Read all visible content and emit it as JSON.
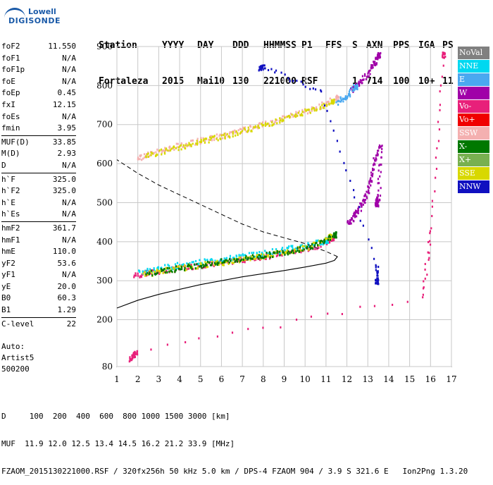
{
  "logo": {
    "line1": "Lowell",
    "line2": "DIGISONDE"
  },
  "header": {
    "row1": [
      "Station",
      "YYYY",
      "DAY",
      "DDD",
      "HHMMSS",
      "P1",
      "FFS",
      "S",
      "AXN",
      "PPS",
      "IGA",
      "PS"
    ],
    "row2": [
      "Fortaleza",
      "2015",
      "Mai10",
      "130",
      "221000",
      "RSF",
      "",
      "1",
      "714",
      "100",
      "10+",
      "11"
    ]
  },
  "params": [
    [
      {
        "k": "foF2",
        "v": "11.550"
      },
      {
        "k": "foF1",
        "v": "N/A"
      },
      {
        "k": "foF1p",
        "v": "N/A"
      },
      {
        "k": "foE",
        "v": "N/A"
      },
      {
        "k": "foEp",
        "v": "0.45"
      },
      {
        "k": "fxI",
        "v": "12.15"
      },
      {
        "k": "foEs",
        "v": "N/A"
      },
      {
        "k": "fmin",
        "v": "3.95"
      }
    ],
    [
      {
        "k": "MUF(D)",
        "v": "33.85"
      },
      {
        "k": "M(D)",
        "v": "2.93"
      },
      {
        "k": "D",
        "v": "N/A"
      }
    ],
    [
      {
        "k": "h`F",
        "v": "325.0"
      },
      {
        "k": "h`F2",
        "v": "325.0"
      },
      {
        "k": "h`E",
        "v": "N/A"
      },
      {
        "k": "h`Es",
        "v": "N/A"
      }
    ],
    [
      {
        "k": "hmF2",
        "v": "361.7"
      },
      {
        "k": "hmF1",
        "v": "N/A"
      },
      {
        "k": "hmE",
        "v": "110.0"
      },
      {
        "k": "yF2",
        "v": "53.6"
      },
      {
        "k": "yF1",
        "v": "N/A"
      },
      {
        "k": "yE",
        "v": "20.0"
      },
      {
        "k": "B0",
        "v": "60.3"
      },
      {
        "k": "B1",
        "v": "1.29"
      }
    ],
    [
      {
        "k": "C-level",
        "v": "22"
      }
    ]
  ],
  "auto": {
    "l1": "Auto:",
    "l2": "Artist5",
    "l3": "500200"
  },
  "footer": {
    "d_line": "D     100  200  400  600  800 1000 1500 3000 [km]",
    "muf_line": "MUF  11.9 12.0 12.5 13.4 14.5 16.2 21.2 33.9 [MHz]",
    "file_line": "FZAOM_2015130221000.RSF / 320fx256h 50 kHz 5.0 km / DPS-4 FZAOM 904 / 3.9 S 321.6 E   Ion2Png 1.3.20"
  },
  "legend": [
    {
      "label": "NoVal",
      "color": "#808080"
    },
    {
      "label": "NNE",
      "color": "#00d8f0"
    },
    {
      "label": "E",
      "color": "#4aa8f0"
    },
    {
      "label": "W",
      "color": "#a000a8"
    },
    {
      "label": "Vo-",
      "color": "#e8207a"
    },
    {
      "label": "Vo+",
      "color": "#f00000"
    },
    {
      "label": "SSW",
      "color": "#f4b0b0"
    },
    {
      "label": "X-",
      "color": "#007800"
    },
    {
      "label": "X+",
      "color": "#78b050"
    },
    {
      "label": "SSE",
      "color": "#d8d800"
    },
    {
      "label": "NNW",
      "color": "#1010c0"
    }
  ],
  "chart_data": {
    "type": "scatter",
    "xlim": [
      1,
      17
    ],
    "ylim": [
      80,
      900
    ],
    "x_ticks": [
      "1",
      "2",
      "3",
      "4",
      "5",
      "6",
      "7",
      "8",
      "9",
      "10",
      "11",
      "12",
      "13",
      "14",
      "15",
      "16",
      "17"
    ],
    "y_ticks": [
      "80",
      "200",
      "300",
      "400",
      "500",
      "600",
      "700",
      "800",
      "900"
    ],
    "grid": true,
    "legend_position": "right",
    "traces": [
      {
        "color": "#e8207a",
        "points": [
          [
            1.8,
            315
          ],
          [
            2.5,
            322
          ],
          [
            3.5,
            330
          ],
          [
            4.5,
            338
          ],
          [
            5.5,
            345
          ],
          [
            6.5,
            352
          ],
          [
            7.5,
            360
          ],
          [
            8.5,
            368
          ],
          [
            9.5,
            378
          ],
          [
            10.5,
            390
          ],
          [
            11.3,
            410
          ]
        ]
      },
      {
        "color": "#00d8f0",
        "points": [
          [
            2.0,
            325
          ],
          [
            3.0,
            333
          ],
          [
            4.0,
            342
          ],
          [
            5.0,
            350
          ],
          [
            6.0,
            357
          ],
          [
            7.0,
            365
          ],
          [
            8.0,
            373
          ],
          [
            9.0,
            382
          ],
          [
            10.0,
            393
          ],
          [
            11.0,
            405
          ]
        ]
      },
      {
        "color": "#d8d800",
        "points": [
          [
            2.2,
            318
          ],
          [
            3.2,
            328
          ],
          [
            4.2,
            336
          ],
          [
            5.2,
            344
          ],
          [
            6.2,
            350
          ],
          [
            7.2,
            360
          ],
          [
            8.2,
            368
          ],
          [
            9.2,
            378
          ],
          [
            10.2,
            390
          ],
          [
            11.2,
            415
          ]
        ]
      },
      {
        "color": "#007800",
        "points": [
          [
            2.4,
            320
          ],
          [
            3.4,
            330
          ],
          [
            4.4,
            338
          ],
          [
            5.4,
            346
          ],
          [
            6.4,
            354
          ],
          [
            7.4,
            362
          ],
          [
            8.4,
            370
          ],
          [
            9.4,
            380
          ],
          [
            10.4,
            392
          ],
          [
            11.4,
            420
          ]
        ]
      },
      {
        "color": "#a000a8",
        "points": [
          [
            12.0,
            450
          ],
          [
            12.3,
            465
          ],
          [
            12.6,
            490
          ],
          [
            12.9,
            520
          ],
          [
            13.1,
            560
          ],
          [
            13.3,
            610
          ],
          [
            13.6,
            650
          ],
          [
            13.5,
            520
          ],
          [
            13.4,
            500
          ]
        ]
      },
      {
        "color": "#f4b0b0",
        "points": [
          [
            1.9,
            615
          ],
          [
            2.6,
            628
          ],
          [
            3.5,
            642
          ],
          [
            4.5,
            655
          ],
          [
            5.5,
            668
          ],
          [
            6.5,
            680
          ],
          [
            7.5,
            695
          ],
          [
            8.5,
            710
          ],
          [
            9.5,
            728
          ],
          [
            10.5,
            745
          ],
          [
            11.5,
            770
          ]
        ]
      },
      {
        "color": "#d8d800",
        "points": [
          [
            2.3,
            620
          ],
          [
            3.3,
            635
          ],
          [
            4.3,
            648
          ],
          [
            5.3,
            662
          ],
          [
            6.3,
            675
          ],
          [
            7.3,
            690
          ],
          [
            8.3,
            705
          ],
          [
            9.3,
            722
          ],
          [
            10.3,
            740
          ],
          [
            11.3,
            762
          ]
        ]
      },
      {
        "color": "#a000a8",
        "points": [
          [
            12.2,
            790
          ],
          [
            12.6,
            810
          ],
          [
            13.0,
            835
          ],
          [
            13.3,
            860
          ],
          [
            13.5,
            880
          ]
        ]
      },
      {
        "color": "#4aa8f0",
        "points": [
          [
            11.5,
            760
          ],
          [
            12.0,
            775
          ],
          [
            12.4,
            800
          ]
        ]
      },
      {
        "color": "#1010c0",
        "points": [
          [
            7.8,
            848
          ],
          [
            8.0,
            850
          ],
          [
            10.8,
            782
          ],
          [
            13.4,
            340
          ],
          [
            13.4,
            300
          ]
        ]
      },
      {
        "color": "#e8207a",
        "points": [
          [
            1.6,
            100
          ],
          [
            1.8,
            110
          ],
          [
            1.9,
            120
          ],
          [
            15.6,
            260
          ],
          [
            16.0,
            440
          ],
          [
            16.6,
            880
          ]
        ]
      }
    ],
    "profile_line": [
      [
        11.55,
        361.7
      ],
      [
        11.4,
        352
      ],
      [
        11.0,
        345
      ],
      [
        10.0,
        335
      ],
      [
        9.0,
        326
      ],
      [
        8.0,
        318
      ],
      [
        7.0,
        310
      ],
      [
        6.0,
        300
      ],
      [
        5.0,
        290
      ],
      [
        4.0,
        278
      ],
      [
        3.0,
        265
      ],
      [
        2.0,
        250
      ],
      [
        1.0,
        230
      ]
    ],
    "profile_dashed": [
      [
        11.55,
        361.7
      ],
      [
        11.0,
        375
      ],
      [
        10.0,
        395
      ],
      [
        9.0,
        410
      ],
      [
        8.0,
        425
      ],
      [
        7.0,
        445
      ],
      [
        6.0,
        470
      ],
      [
        5.0,
        495
      ],
      [
        4.0,
        520
      ],
      [
        3.0,
        545
      ],
      [
        2.0,
        575
      ],
      [
        1.0,
        610
      ]
    ]
  }
}
